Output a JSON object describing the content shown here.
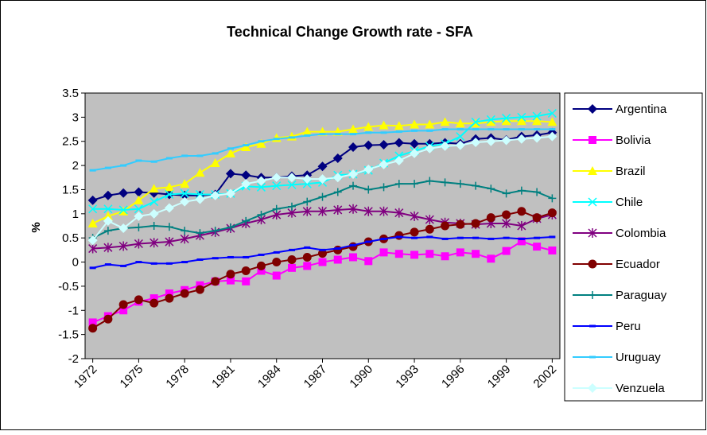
{
  "chart_data": {
    "type": "line",
    "title": "Technical Change Growth rate - SFA",
    "y_label": "%",
    "x": [
      1972,
      1973,
      1974,
      1975,
      1976,
      1977,
      1978,
      1979,
      1980,
      1981,
      1982,
      1983,
      1984,
      1985,
      1986,
      1987,
      1988,
      1989,
      1990,
      1991,
      1992,
      1993,
      1994,
      1995,
      1996,
      1997,
      1998,
      1999,
      2000,
      2001,
      2002
    ],
    "xlim": [
      1971.5,
      2002.5
    ],
    "xticks": [
      1972,
      1975,
      1978,
      1981,
      1984,
      1987,
      1990,
      1993,
      1996,
      1999,
      2002
    ],
    "ylim": [
      -2,
      3.5
    ],
    "yticks": [
      -2,
      -1.5,
      -1,
      -0.5,
      0,
      0.5,
      1,
      1.5,
      2,
      2.5,
      3,
      3.5
    ],
    "grid": false,
    "plot_background": "#c0c0c0",
    "legend": "right",
    "series": [
      {
        "name": "Argentina",
        "color": "#000080",
        "marker": "diamond",
        "values": [
          1.28,
          1.38,
          1.43,
          1.45,
          1.43,
          1.4,
          1.38,
          1.38,
          1.4,
          1.83,
          1.8,
          1.75,
          1.75,
          1.78,
          1.8,
          1.98,
          2.15,
          2.38,
          2.42,
          2.43,
          2.47,
          2.45,
          2.45,
          2.47,
          2.45,
          2.55,
          2.57,
          2.53,
          2.6,
          2.63,
          2.68
        ]
      },
      {
        "name": "Bolivia",
        "color": "#ff00ff",
        "marker": "square",
        "values": [
          -1.25,
          -1.12,
          -1.0,
          -0.82,
          -0.75,
          -0.65,
          -0.58,
          -0.48,
          -0.4,
          -0.38,
          -0.4,
          -0.18,
          -0.28,
          -0.12,
          -0.08,
          0.0,
          0.05,
          0.1,
          0.02,
          0.2,
          0.17,
          0.15,
          0.17,
          0.12,
          0.2,
          0.17,
          0.07,
          0.23,
          0.43,
          0.32,
          0.24
        ]
      },
      {
        "name": "Brazil",
        "color": "#ffff00",
        "marker": "triangle",
        "values": [
          0.8,
          0.95,
          1.05,
          1.28,
          1.52,
          1.55,
          1.62,
          1.85,
          2.05,
          2.25,
          2.38,
          2.45,
          2.57,
          2.6,
          2.7,
          2.7,
          2.7,
          2.75,
          2.8,
          2.83,
          2.82,
          2.85,
          2.85,
          2.9,
          2.87,
          2.87,
          2.9,
          2.92,
          2.92,
          2.92,
          2.9
        ]
      },
      {
        "name": "Chile",
        "color": "#00ffff",
        "marker": "x",
        "values": [
          1.1,
          1.1,
          1.08,
          1.1,
          1.25,
          1.4,
          1.42,
          1.4,
          1.4,
          1.42,
          1.57,
          1.55,
          1.58,
          1.6,
          1.62,
          1.65,
          1.8,
          1.82,
          1.9,
          2.05,
          2.2,
          2.3,
          2.4,
          2.45,
          2.6,
          2.9,
          2.95,
          2.98,
          3.0,
          3.02,
          3.08
        ]
      },
      {
        "name": "Colombia",
        "color": "#800080",
        "marker": "star",
        "values": [
          0.28,
          0.3,
          0.33,
          0.38,
          0.4,
          0.42,
          0.48,
          0.55,
          0.62,
          0.7,
          0.8,
          0.88,
          0.98,
          1.02,
          1.05,
          1.05,
          1.08,
          1.1,
          1.05,
          1.05,
          1.02,
          0.95,
          0.88,
          0.82,
          0.8,
          0.78,
          0.8,
          0.8,
          0.75,
          0.9,
          0.98
        ]
      },
      {
        "name": "Ecuador",
        "color": "#800000",
        "marker": "circle",
        "values": [
          -1.37,
          -1.18,
          -0.88,
          -0.78,
          -0.85,
          -0.75,
          -0.65,
          -0.57,
          -0.4,
          -0.25,
          -0.18,
          -0.08,
          0.0,
          0.05,
          0.1,
          0.18,
          0.25,
          0.32,
          0.42,
          0.48,
          0.55,
          0.62,
          0.68,
          0.75,
          0.78,
          0.8,
          0.92,
          0.98,
          1.05,
          0.92,
          1.02
        ]
      },
      {
        "name": "Paraguay",
        "color": "#008080",
        "marker": "plus",
        "values": [
          0.5,
          0.65,
          0.7,
          0.72,
          0.75,
          0.73,
          0.65,
          0.6,
          0.65,
          0.72,
          0.85,
          0.98,
          1.1,
          1.15,
          1.25,
          1.35,
          1.45,
          1.58,
          1.5,
          1.55,
          1.62,
          1.62,
          1.68,
          1.65,
          1.62,
          1.58,
          1.52,
          1.42,
          1.48,
          1.45,
          1.32
        ]
      },
      {
        "name": "Peru",
        "color": "#0000ff",
        "marker": "dash",
        "values": [
          -0.12,
          -0.05,
          -0.08,
          0.0,
          -0.03,
          -0.03,
          0.0,
          0.05,
          0.08,
          0.1,
          0.1,
          0.15,
          0.2,
          0.25,
          0.3,
          0.25,
          0.28,
          0.35,
          0.42,
          0.48,
          0.52,
          0.5,
          0.52,
          0.48,
          0.5,
          0.5,
          0.48,
          0.5,
          0.48,
          0.5,
          0.52
        ]
      },
      {
        "name": "Uruguay",
        "color": "#33ccff",
        "marker": "dash",
        "values": [
          1.9,
          1.95,
          2.0,
          2.1,
          2.08,
          2.15,
          2.2,
          2.2,
          2.25,
          2.35,
          2.42,
          2.5,
          2.55,
          2.58,
          2.62,
          2.65,
          2.65,
          2.65,
          2.68,
          2.68,
          2.7,
          2.72,
          2.72,
          2.75,
          2.75,
          2.75,
          2.75,
          2.75,
          2.75,
          2.75,
          2.75
        ]
      },
      {
        "name": "Venzuela",
        "color": "#ccffff",
        "marker": "diamond",
        "values": [
          0.45,
          0.85,
          0.7,
          0.95,
          1.0,
          1.12,
          1.25,
          1.3,
          1.38,
          1.42,
          1.62,
          1.68,
          1.75,
          1.75,
          1.72,
          1.72,
          1.75,
          1.82,
          1.92,
          2.02,
          2.1,
          2.25,
          2.35,
          2.4,
          2.42,
          2.48,
          2.5,
          2.52,
          2.55,
          2.57,
          2.6
        ]
      }
    ]
  }
}
